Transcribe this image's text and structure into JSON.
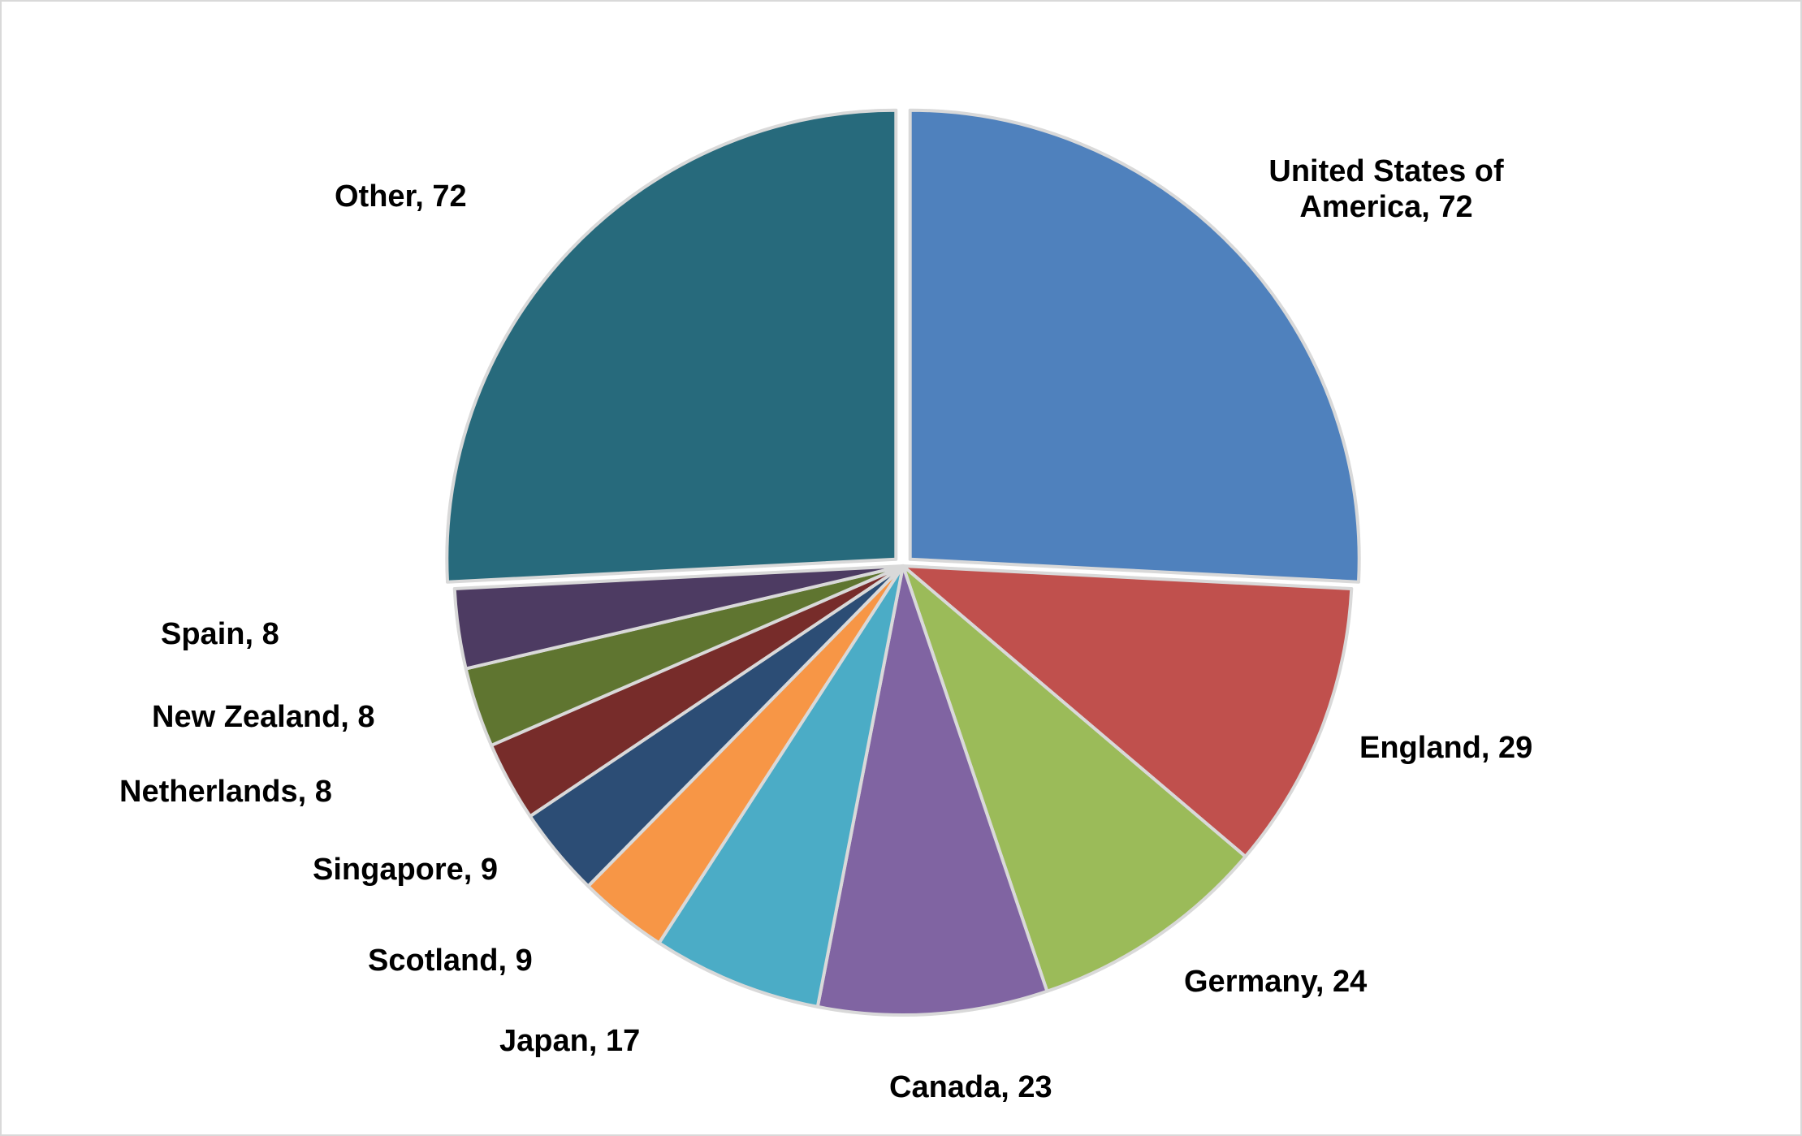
{
  "chart_data": {
    "type": "pie",
    "title": "",
    "categories": [
      "United States of America",
      "England",
      "Germany",
      "Canada",
      "Japan",
      "Scotland",
      "Singapore",
      "Netherlands",
      "New Zealand",
      "Spain",
      "Other"
    ],
    "values": [
      72,
      29,
      24,
      23,
      17,
      9,
      9,
      8,
      8,
      8,
      72
    ],
    "labels": [
      [
        "United States of",
        "America, 72"
      ],
      [
        "England, 29"
      ],
      [
        "Germany, 24"
      ],
      [
        "Canada, 23"
      ],
      [
        "Japan, 17"
      ],
      [
        "Scotland, 9"
      ],
      [
        "Singapore, 9"
      ],
      [
        "Netherlands, 8"
      ],
      [
        "New Zealand, 8"
      ],
      [
        "Spain, 8"
      ],
      [
        "Other, 72"
      ]
    ],
    "colors": [
      "#4f81bd",
      "#c0504d",
      "#9bbb59",
      "#8064a2",
      "#4bacc6",
      "#f79646",
      "#2c4d75",
      "#772c2a",
      "#5f7530",
      "#4d3b62",
      "#276a7c"
    ],
    "start_angle_deg": 0,
    "direction": "clockwise",
    "exploded_slices": [
      "United States of America",
      "Other"
    ],
    "legend": "none",
    "data_labels": "outside, category and value"
  }
}
